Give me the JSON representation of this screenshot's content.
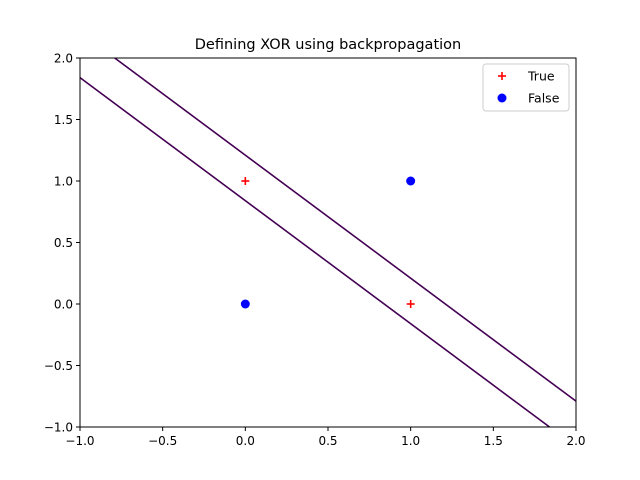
{
  "chart_data": {
    "type": "scatter",
    "title": "Defining XOR using backpropagation",
    "xlabel": "",
    "ylabel": "",
    "xlim": [
      -1.0,
      2.0
    ],
    "ylim": [
      -1.0,
      2.0
    ],
    "x_ticks": [
      -1.0,
      -0.5,
      0.0,
      0.5,
      1.0,
      1.5,
      2.0
    ],
    "x_tick_labels": [
      "−1.0",
      "−0.5",
      "0.0",
      "0.5",
      "1.0",
      "1.5",
      "2.0"
    ],
    "y_ticks": [
      -1.0,
      -0.5,
      0.0,
      0.5,
      1.0,
      1.5,
      2.0
    ],
    "y_tick_labels": [
      "−1.0",
      "−0.5",
      "0.0",
      "0.5",
      "1.0",
      "1.5",
      "2.0"
    ],
    "grid": false,
    "legend_position": "top-right",
    "series": [
      {
        "name": "True",
        "marker": "plus",
        "color": "#ff0000",
        "points": [
          [
            0,
            1
          ],
          [
            1,
            0
          ]
        ]
      },
      {
        "name": "False",
        "marker": "circle",
        "color": "#0000ff",
        "points": [
          [
            0,
            0
          ],
          [
            1,
            1
          ]
        ]
      }
    ],
    "lines": [
      {
        "color": "#440154",
        "points": [
          [
            -0.79,
            2.0
          ],
          [
            2.0,
            -0.79
          ]
        ]
      },
      {
        "color": "#440154",
        "points": [
          [
            -1.0,
            1.84
          ],
          [
            1.84,
            -1.0
          ]
        ]
      }
    ]
  }
}
